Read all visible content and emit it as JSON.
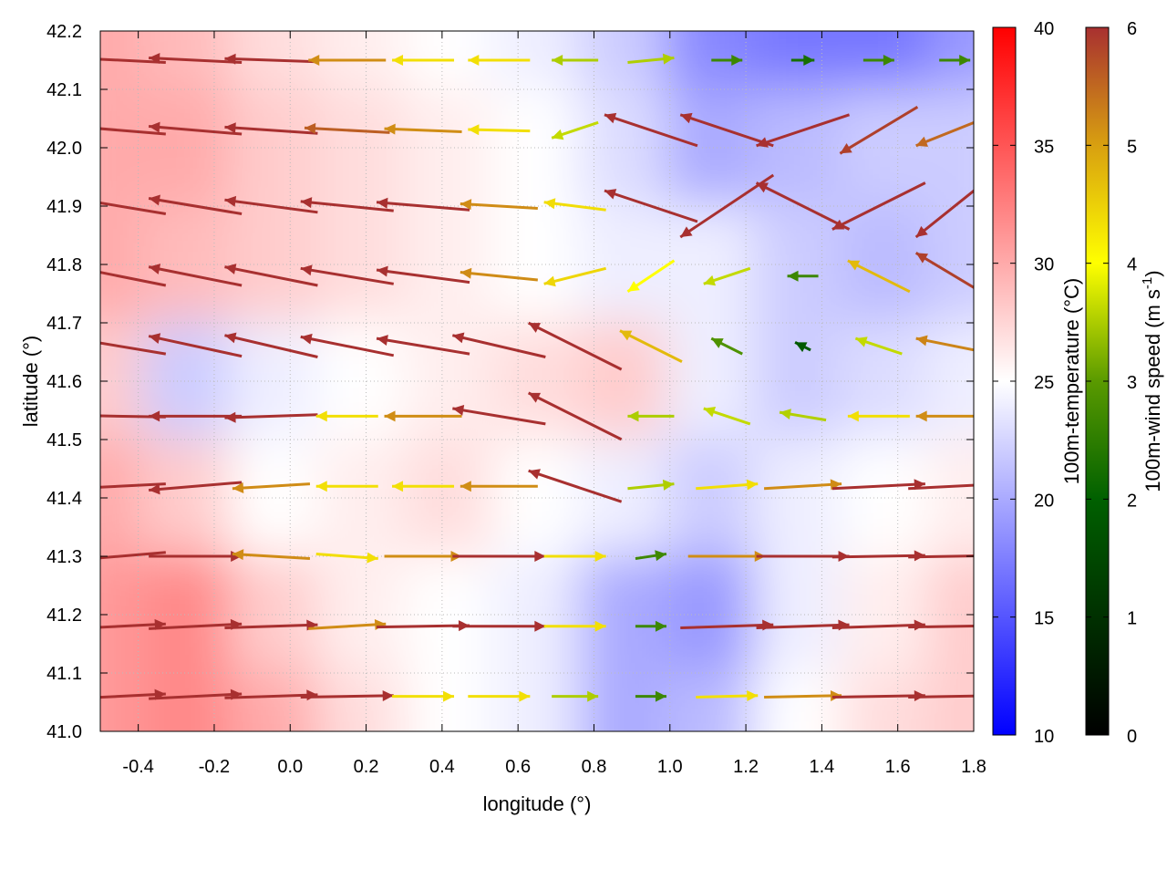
{
  "chart_data": {
    "type": "heatmap",
    "xlabel": "longitude (°)",
    "ylabel": "latitude (°)",
    "xlim": [
      -0.5,
      1.8
    ],
    "ylim": [
      41.0,
      42.2
    ],
    "xticks": [
      "-0.4",
      "-0.2",
      "0.0",
      "0.2",
      "0.4",
      "0.6",
      "0.8",
      "1.0",
      "1.2",
      "1.4",
      "1.6",
      "1.8"
    ],
    "xtick_values": [
      -0.4,
      -0.2,
      0,
      0.2,
      0.4,
      0.6,
      0.8,
      1.0,
      1.2,
      1.4,
      1.6,
      1.8
    ],
    "yticks": [
      "41.0",
      "41.1",
      "41.2",
      "41.3",
      "41.4",
      "41.5",
      "41.6",
      "41.7",
      "41.8",
      "41.9",
      "42.0",
      "42.1",
      "42.2"
    ],
    "ytick_values": [
      41.0,
      41.1,
      41.2,
      41.3,
      41.4,
      41.5,
      41.6,
      41.7,
      41.8,
      41.9,
      42.0,
      42.1,
      42.2
    ],
    "grid": true,
    "temperature": {
      "label": "100m-temperature (°C)",
      "range": [
        10,
        40
      ],
      "ticks": [
        "10",
        "15",
        "20",
        "25",
        "30",
        "35",
        "40"
      ],
      "tick_values": [
        10,
        15,
        20,
        25,
        30,
        35,
        40
      ],
      "colors": [
        "#0000ff",
        "#ffffff",
        "#ff0000"
      ],
      "lats": [
        42.2,
        42.0,
        41.8,
        41.6,
        41.4,
        41.2,
        41.0
      ],
      "lon_start": -0.5,
      "lon_step": 0.23,
      "values": [
        [
          30,
          29,
          27,
          26,
          25,
          24,
          22,
          18,
          17,
          17,
          19
        ],
        [
          30,
          30,
          28,
          27,
          26,
          25,
          23,
          20,
          21,
          22,
          22
        ],
        [
          30,
          29,
          28,
          27,
          26,
          25,
          24,
          24,
          22,
          21,
          22
        ],
        [
          28,
          22,
          24,
          25,
          26,
          27,
          28,
          24,
          22,
          23,
          24
        ],
        [
          30,
          28,
          25,
          26,
          27,
          25,
          24,
          22,
          24,
          25,
          26
        ],
        [
          31,
          32,
          28,
          26,
          25,
          24,
          20,
          19,
          24,
          26,
          28
        ],
        [
          31,
          32,
          30,
          27,
          25,
          24,
          20,
          21,
          25,
          27,
          28
        ]
      ]
    },
    "wind": {
      "label": "100m-wind speed (m s",
      "label_sup": "-1",
      "label_end": ")",
      "range": [
        0,
        6
      ],
      "ticks": [
        "0",
        "1",
        "2",
        "3",
        "4",
        "5",
        "6"
      ],
      "tick_values": [
        0,
        1,
        2,
        3,
        4,
        5,
        6
      ],
      "colors": [
        "#000000",
        "#006000",
        "#5a9a00",
        "#ffff00",
        "#d8a010",
        "#a83030"
      ],
      "lats": [
        42.15,
        42.03,
        41.9,
        41.78,
        41.66,
        41.54,
        41.42,
        41.3,
        41.18,
        41.06
      ],
      "lons": [
        -0.45,
        -0.25,
        -0.05,
        0.15,
        0.35,
        0.55,
        0.75,
        0.95,
        1.15,
        1.35,
        1.55,
        1.75
      ],
      "uv": [
        [
          [
            -6,
            0.3
          ],
          [
            -6,
            0.3
          ],
          [
            -6,
            0.2
          ],
          [
            -5,
            0
          ],
          [
            -4,
            0
          ],
          [
            -4,
            0
          ],
          [
            -3,
            0
          ],
          [
            3,
            0.3
          ],
          [
            2,
            0
          ],
          [
            1.5,
            0
          ],
          [
            2,
            0
          ],
          [
            2,
            0
          ]
        ],
        [
          [
            -6,
            0.5
          ],
          [
            -6,
            0.5
          ],
          [
            -6,
            0.4
          ],
          [
            -5.5,
            0.3
          ],
          [
            -5,
            0.2
          ],
          [
            -4,
            0.1
          ],
          [
            -3,
            -1
          ],
          [
            -6,
            2
          ],
          [
            -6,
            2
          ],
          [
            -6,
            -2
          ],
          [
            -5,
            -3
          ],
          [
            -5,
            -2
          ]
        ],
        [
          [
            -6,
            1
          ],
          [
            -6,
            1
          ],
          [
            -6,
            0.8
          ],
          [
            -6,
            0.6
          ],
          [
            -6,
            0.5
          ],
          [
            -5,
            0.3
          ],
          [
            -4,
            0.5
          ],
          [
            -6,
            2
          ],
          [
            -6,
            -4
          ],
          [
            -6,
            3
          ],
          [
            -6,
            -3
          ],
          [
            -5,
            -4
          ]
        ],
        [
          [
            -6,
            1.2
          ],
          [
            -6,
            1.2
          ],
          [
            -6,
            1.2
          ],
          [
            -6,
            1
          ],
          [
            -6,
            0.8
          ],
          [
            -5,
            0.5
          ],
          [
            -4,
            -1
          ],
          [
            -3,
            -2
          ],
          [
            -3,
            -1
          ],
          [
            -2,
            0
          ],
          [
            -4,
            2
          ],
          [
            -5,
            3
          ]
        ],
        [
          [
            -6,
            1
          ],
          [
            -6,
            1.3
          ],
          [
            -6,
            1.4
          ],
          [
            -6,
            1.2
          ],
          [
            -6,
            1
          ],
          [
            -6,
            1.4
          ],
          [
            -6,
            3
          ],
          [
            -4,
            2
          ],
          [
            -2,
            1
          ],
          [
            -1,
            0.5
          ],
          [
            -3,
            1
          ],
          [
            -5,
            1
          ]
        ],
        [
          [
            -6,
            0.1
          ],
          [
            -6,
            0
          ],
          [
            -6,
            -0.2
          ],
          [
            -4,
            0
          ],
          [
            -5,
            0
          ],
          [
            -6,
            1
          ],
          [
            -6,
            3
          ],
          [
            -3,
            0
          ],
          [
            -3,
            1
          ],
          [
            -3,
            0.5
          ],
          [
            -4,
            0
          ],
          [
            -5,
            0
          ]
        ],
        [
          [
            -6,
            -0.3
          ],
          [
            -6,
            -0.5
          ],
          [
            -5,
            -0.3
          ],
          [
            -4,
            0
          ],
          [
            -4,
            0
          ],
          [
            -5,
            0
          ],
          [
            -6,
            2
          ],
          [
            3,
            0.3
          ],
          [
            4,
            0.3
          ],
          [
            5,
            0.3
          ],
          [
            6,
            0.3
          ],
          [
            6,
            0.3
          ]
        ],
        [
          [
            -6,
            -0.5
          ],
          [
            6,
            0
          ],
          [
            -5,
            0.3
          ],
          [
            4,
            -0.3
          ],
          [
            5,
            0
          ],
          [
            6,
            0
          ],
          [
            4,
            0
          ],
          [
            2,
            0.3
          ],
          [
            5,
            0
          ],
          [
            6,
            0
          ],
          [
            6,
            0.1
          ],
          [
            6,
            0.1
          ]
        ],
        [
          [
            6,
            0.3
          ],
          [
            6,
            0.3
          ],
          [
            6,
            0.2
          ],
          [
            5,
            0.3
          ],
          [
            6,
            0.1
          ],
          [
            6,
            0
          ],
          [
            4,
            0
          ],
          [
            2,
            0
          ],
          [
            6,
            0.2
          ],
          [
            6,
            0.2
          ],
          [
            6,
            0.2
          ],
          [
            6,
            0.1
          ]
        ],
        [
          [
            6,
            0.3
          ],
          [
            6,
            0.3
          ],
          [
            6,
            0.2
          ],
          [
            6,
            0.1
          ],
          [
            4,
            0
          ],
          [
            4,
            0
          ],
          [
            3,
            0
          ],
          [
            2,
            0
          ],
          [
            4,
            0.1
          ],
          [
            5,
            0.1
          ],
          [
            6,
            0.1
          ],
          [
            6,
            0.1
          ]
        ]
      ]
    }
  }
}
